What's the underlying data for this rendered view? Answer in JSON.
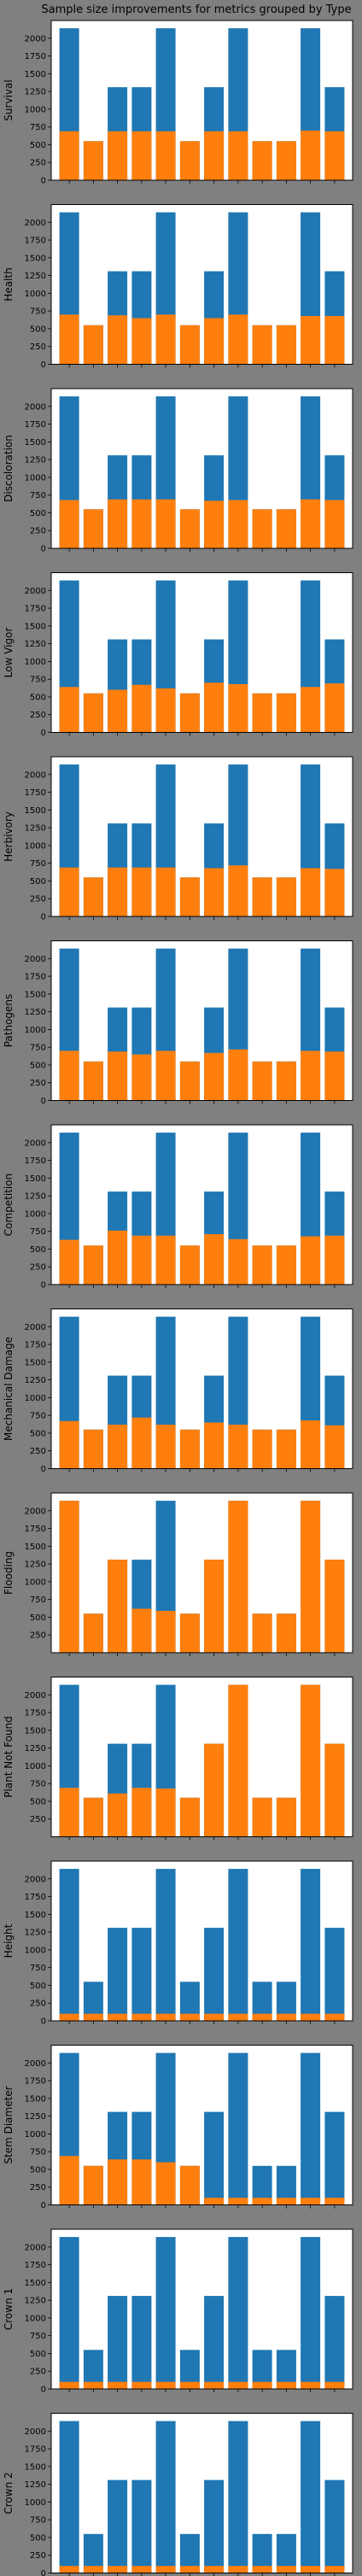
{
  "figure": {
    "title": "Sample size improvements for metrics grouped by Type"
  },
  "colors": {
    "background": "#808080",
    "blue": "#1f77b4",
    "orange": "#ff7f0e",
    "axes_face": "#ffffff"
  },
  "chart_data": [
    {
      "type": "bar",
      "ylabel": "Survival",
      "ylim": [
        0,
        2250
      ],
      "yticks": [
        0,
        250,
        500,
        750,
        1000,
        1250,
        1500,
        1750,
        2000
      ],
      "legend": "none",
      "grid": false,
      "series": [
        {
          "values": [
            2140,
            550,
            1310,
            1310,
            2140,
            550,
            1310,
            2140,
            550,
            550,
            2140,
            1310
          ]
        },
        {
          "values": [
            690,
            550,
            690,
            690,
            690,
            550,
            690,
            690,
            550,
            550,
            700,
            690
          ]
        }
      ]
    },
    {
      "type": "bar",
      "ylabel": "Health",
      "ylim": [
        0,
        2250
      ],
      "yticks": [
        0,
        250,
        500,
        750,
        1000,
        1250,
        1500,
        1750,
        2000
      ],
      "legend": "none",
      "grid": false,
      "series": [
        {
          "values": [
            2140,
            550,
            1310,
            1310,
            2140,
            550,
            1310,
            2140,
            550,
            550,
            2140,
            1310
          ]
        },
        {
          "values": [
            700,
            550,
            690,
            650,
            700,
            550,
            650,
            700,
            550,
            550,
            680,
            680
          ]
        }
      ]
    },
    {
      "type": "bar",
      "ylabel": "Discoloration",
      "ylim": [
        0,
        2250
      ],
      "yticks": [
        0,
        250,
        500,
        750,
        1000,
        1250,
        1500,
        1750,
        2000
      ],
      "legend": "none",
      "grid": false,
      "series": [
        {
          "values": [
            2140,
            550,
            1310,
            1310,
            2140,
            550,
            1310,
            2140,
            550,
            550,
            2140,
            1310
          ]
        },
        {
          "values": [
            680,
            550,
            690,
            690,
            690,
            550,
            670,
            680,
            550,
            550,
            690,
            680
          ]
        }
      ]
    },
    {
      "type": "bar",
      "ylabel": "Low Vigor",
      "ylim": [
        0,
        2250
      ],
      "yticks": [
        0,
        250,
        500,
        750,
        1000,
        1250,
        1500,
        1750,
        2000
      ],
      "legend": "none",
      "grid": false,
      "series": [
        {
          "values": [
            2140,
            550,
            1310,
            1310,
            2140,
            550,
            1310,
            2140,
            550,
            550,
            2140,
            1310
          ]
        },
        {
          "values": [
            640,
            550,
            600,
            670,
            620,
            550,
            700,
            680,
            550,
            550,
            640,
            690
          ]
        }
      ]
    },
    {
      "type": "bar",
      "ylabel": "Herbivory",
      "ylim": [
        0,
        2250
      ],
      "yticks": [
        0,
        250,
        500,
        750,
        1000,
        1250,
        1500,
        1750,
        2000
      ],
      "legend": "none",
      "grid": false,
      "series": [
        {
          "values": [
            2140,
            550,
            1310,
            1310,
            2140,
            550,
            1310,
            2140,
            550,
            550,
            2140,
            1310
          ]
        },
        {
          "values": [
            690,
            550,
            690,
            690,
            690,
            550,
            680,
            720,
            550,
            550,
            680,
            670
          ]
        }
      ]
    },
    {
      "type": "bar",
      "ylabel": "Pathogens",
      "ylim": [
        0,
        2250
      ],
      "yticks": [
        0,
        250,
        500,
        750,
        1000,
        1250,
        1500,
        1750,
        2000
      ],
      "legend": "none",
      "grid": false,
      "series": [
        {
          "values": [
            2140,
            550,
            1310,
            1310,
            2140,
            550,
            1310,
            2140,
            550,
            550,
            2140,
            1310
          ]
        },
        {
          "values": [
            700,
            550,
            690,
            650,
            700,
            550,
            670,
            720,
            550,
            550,
            700,
            690
          ]
        }
      ]
    },
    {
      "type": "bar",
      "ylabel": "Competition",
      "ylim": [
        0,
        2250
      ],
      "yticks": [
        0,
        250,
        500,
        750,
        1000,
        1250,
        1500,
        1750,
        2000
      ],
      "legend": "none",
      "grid": false,
      "series": [
        {
          "values": [
            2140,
            550,
            1310,
            1310,
            2140,
            550,
            1310,
            2140,
            550,
            550,
            2140,
            1310
          ]
        },
        {
          "values": [
            630,
            550,
            760,
            690,
            690,
            550,
            710,
            640,
            550,
            550,
            680,
            690
          ]
        }
      ]
    },
    {
      "type": "bar",
      "ylabel": "Mechanical Damage",
      "ylim": [
        0,
        2250
      ],
      "yticks": [
        0,
        250,
        500,
        750,
        1000,
        1250,
        1500,
        1750,
        2000
      ],
      "legend": "none",
      "grid": false,
      "series": [
        {
          "values": [
            2140,
            550,
            1310,
            1310,
            2140,
            550,
            1310,
            2140,
            550,
            550,
            2140,
            1310
          ]
        },
        {
          "values": [
            670,
            550,
            620,
            720,
            620,
            550,
            650,
            620,
            550,
            550,
            680,
            610
          ]
        }
      ]
    },
    {
      "type": "bar",
      "ylabel": "Flooding",
      "ylim": [
        0,
        2250
      ],
      "yticks": [
        250,
        500,
        750,
        1000,
        1250,
        1500,
        1750,
        2000
      ],
      "legend": "none",
      "grid": false,
      "series": [
        {
          "values": [
            2140,
            550,
            1310,
            1310,
            2140,
            550,
            1310,
            2140,
            550,
            550,
            2140,
            1310
          ]
        },
        {
          "values": [
            2140,
            550,
            1310,
            620,
            590,
            550,
            1310,
            2140,
            550,
            550,
            2140,
            1310
          ]
        }
      ]
    },
    {
      "type": "bar",
      "ylabel": "Plant Not Found",
      "ylim": [
        0,
        2250
      ],
      "yticks": [
        250,
        500,
        750,
        1000,
        1250,
        1500,
        1750,
        2000
      ],
      "legend": "none",
      "grid": false,
      "series": [
        {
          "values": [
            2140,
            550,
            1310,
            1310,
            2140,
            550,
            1310,
            2140,
            550,
            550,
            2140,
            1310
          ]
        },
        {
          "values": [
            690,
            550,
            610,
            690,
            680,
            550,
            1310,
            2140,
            550,
            550,
            2140,
            1310
          ]
        }
      ]
    },
    {
      "type": "bar",
      "ylabel": "Height",
      "ylim": [
        0,
        2250
      ],
      "yticks": [
        0,
        250,
        500,
        750,
        1000,
        1250,
        1500,
        1750,
        2000
      ],
      "legend": "none",
      "grid": false,
      "series": [
        {
          "values": [
            2140,
            550,
            1310,
            1310,
            2140,
            550,
            1310,
            2140,
            550,
            550,
            2140,
            1310
          ]
        },
        {
          "values": [
            100,
            100,
            100,
            100,
            100,
            100,
            100,
            100,
            100,
            100,
            100,
            100
          ]
        }
      ]
    },
    {
      "type": "bar",
      "ylabel": "Stem Diameter",
      "ylim": [
        0,
        2250
      ],
      "yticks": [
        0,
        250,
        500,
        750,
        1000,
        1250,
        1500,
        1750,
        2000
      ],
      "legend": "none",
      "grid": false,
      "series": [
        {
          "values": [
            2140,
            550,
            1310,
            1310,
            2140,
            550,
            1310,
            2140,
            550,
            550,
            2140,
            1310
          ]
        },
        {
          "values": [
            690,
            550,
            640,
            640,
            600,
            550,
            100,
            100,
            100,
            100,
            100,
            100
          ]
        }
      ]
    },
    {
      "type": "bar",
      "ylabel": "Crown 1",
      "ylim": [
        0,
        2250
      ],
      "yticks": [
        0,
        250,
        500,
        750,
        1000,
        1250,
        1500,
        1750,
        2000
      ],
      "legend": "none",
      "grid": false,
      "series": [
        {
          "values": [
            2140,
            550,
            1310,
            1310,
            2140,
            550,
            1310,
            2140,
            550,
            550,
            2140,
            1310
          ]
        },
        {
          "values": [
            100,
            100,
            100,
            100,
            100,
            100,
            100,
            100,
            100,
            100,
            100,
            100
          ]
        }
      ]
    },
    {
      "type": "bar",
      "ylabel": "Crown 2",
      "ylim": [
        0,
        2250
      ],
      "yticks": [
        0,
        250,
        500,
        750,
        1000,
        1250,
        1500,
        1750,
        2000
      ],
      "legend": "none",
      "grid": false,
      "series": [
        {
          "values": [
            2140,
            550,
            1310,
            1310,
            2140,
            550,
            1310,
            2140,
            550,
            550,
            2140,
            1310
          ]
        },
        {
          "values": [
            100,
            100,
            100,
            100,
            100,
            100,
            100,
            100,
            100,
            100,
            100,
            100
          ]
        }
      ]
    }
  ]
}
